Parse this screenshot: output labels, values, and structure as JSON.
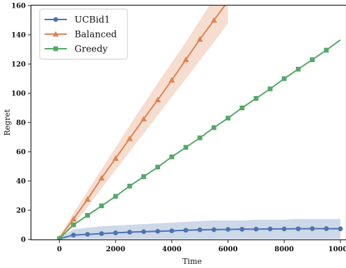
{
  "chart_data": {
    "type": "line",
    "title": "",
    "xlabel": "Time",
    "ylabel": "Regret",
    "xlim": [
      -1000,
      10200
    ],
    "ylim": [
      0,
      160
    ],
    "xticks": [
      0,
      2000,
      4000,
      6000,
      8000,
      10000
    ],
    "yticks": [
      0,
      20,
      40,
      60,
      80,
      100,
      120,
      140,
      160
    ],
    "grid": false,
    "legend_position": "top-left",
    "series": [
      {
        "name": "UCBid1",
        "color": "#4c72b0",
        "marker": "circle",
        "x": [
          0,
          500,
          1000,
          1500,
          2000,
          2500,
          3000,
          3500,
          4000,
          4500,
          5000,
          5500,
          6000,
          6500,
          7000,
          7500,
          8000,
          8500,
          9000,
          9500,
          10000
        ],
        "y": [
          0.5,
          3.0,
          3.5,
          4.0,
          4.5,
          5.0,
          5.3,
          5.6,
          5.9,
          6.3,
          6.6,
          6.7,
          6.9,
          7.0,
          7.1,
          7.2,
          7.2,
          7.3,
          7.4,
          7.4,
          7.3
        ],
        "band_lower": [
          0,
          0.5,
          0.5,
          0.5,
          0.5,
          0.5,
          0.5,
          0.5,
          0.5,
          0.5,
          0.5,
          0.5,
          0.5,
          0.5,
          0.5,
          0.5,
          0.5,
          0.5,
          0.5,
          0.5,
          0.5
        ],
        "band_upper": [
          1,
          7,
          8,
          9,
          9.5,
          10,
          10.5,
          11,
          11.5,
          12,
          12.5,
          13,
          13,
          13,
          13.5,
          13.5,
          13.5,
          14,
          14,
          14,
          14
        ]
      },
      {
        "name": "Balanced",
        "color": "#dd8452",
        "marker": "triangle",
        "x": [
          0,
          500,
          1000,
          1500,
          2000,
          2500,
          3000,
          3500,
          4000,
          4500,
          5000,
          5500,
          6000
        ],
        "y": [
          1,
          14,
          27.5,
          42,
          55.5,
          69,
          82.5,
          95.5,
          109,
          123,
          137,
          150,
          163
        ],
        "band_lower": [
          0,
          10,
          22,
          35,
          47.5,
          60,
          72.5,
          85,
          97.5,
          110,
          122.5,
          135,
          148
        ],
        "band_upper": [
          2,
          18,
          33,
          48,
          63,
          78,
          92.5,
          107,
          121,
          135,
          150,
          165,
          180
        ]
      },
      {
        "name": "Greedy",
        "color": "#55a868",
        "marker": "square",
        "x": [
          0,
          500,
          1000,
          1500,
          2000,
          2500,
          3000,
          3500,
          4000,
          4500,
          5000,
          5500,
          6000,
          6500,
          7000,
          7500,
          8000,
          8500,
          9000,
          9500
        ],
        "y": [
          0.5,
          10,
          16.5,
          23,
          29.5,
          36.5,
          43,
          49.5,
          56.5,
          63,
          69.5,
          76.5,
          83,
          90,
          96.5,
          103,
          110,
          116.5,
          123,
          129.5
        ],
        "line_end": [
          10000,
          136.5
        ]
      }
    ]
  }
}
